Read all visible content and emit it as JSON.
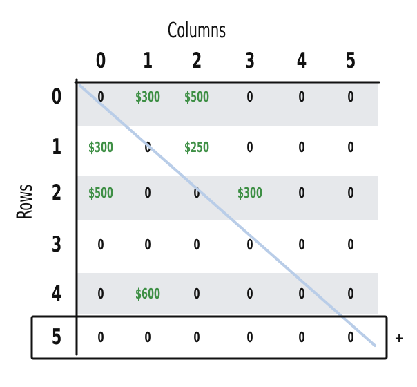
{
  "title": "Columns",
  "row_axis_title": "Rows",
  "column_labels": [
    "0",
    "1",
    "2",
    "3",
    "4",
    "5"
  ],
  "row_labels": [
    "0",
    "1",
    "2",
    "3",
    "4",
    "5"
  ],
  "matrix": [
    [
      "0",
      "$300",
      "$500",
      "0",
      "0",
      "0"
    ],
    [
      "$300",
      "0",
      "$250",
      "0",
      "0",
      "0"
    ],
    [
      "$500",
      "0",
      "0",
      "$300",
      "0",
      "0"
    ],
    [
      "0",
      "0",
      "0",
      "0",
      "0",
      "0"
    ],
    [
      "0",
      "$600",
      "0",
      "0",
      "0",
      "0"
    ],
    [
      "0",
      "0",
      "0",
      "0",
      "0",
      "0"
    ]
  ],
  "highlighted_row_index": 5,
  "add_symbol": "+",
  "colors": {
    "band": "#e6e8eb",
    "money": "#3e8f45",
    "diagonal": "#b9cde8",
    "ink": "#111111"
  }
}
